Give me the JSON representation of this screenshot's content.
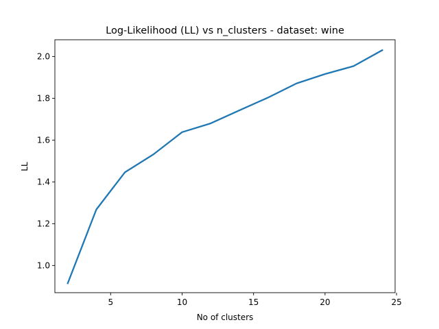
{
  "chart_data": {
    "type": "line",
    "title": "Log-Likelihood (LL) vs n_clusters - dataset: wine",
    "xlabel": "No of clusters",
    "ylabel": "LL",
    "xlim": [
      1.1,
      24.9
    ],
    "ylim": [
      0.87,
      2.08
    ],
    "xticks": [
      5,
      10,
      15,
      20,
      25
    ],
    "yticks": [
      1.0,
      1.2,
      1.4,
      1.6,
      1.8,
      2.0
    ],
    "grid": false,
    "legend": "none",
    "series": [
      {
        "color": "#1f77b4",
        "x": [
          2,
          4,
          6,
          8,
          10,
          12,
          14,
          16,
          18,
          20,
          22,
          24
        ],
        "y": [
          0.915,
          1.268,
          1.446,
          1.532,
          1.638,
          1.68,
          1.742,
          1.803,
          1.871,
          1.916,
          1.954,
          2.03
        ]
      }
    ]
  }
}
